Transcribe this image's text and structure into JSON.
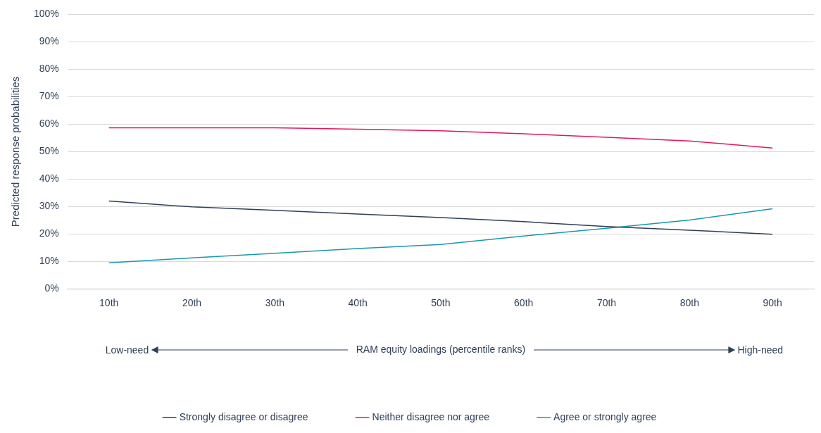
{
  "chart_data": {
    "type": "line",
    "xlabel": "RAM equity loadings (percentile ranks)",
    "ylabel": "Predicted response probabilities",
    "categories": [
      "10th",
      "20th",
      "30th",
      "40th",
      "50th",
      "60th",
      "70th",
      "80th",
      "90th"
    ],
    "series": [
      {
        "name": "Strongly disagree or disagree",
        "color": "#2e3f57",
        "values": [
          32.0,
          29.9,
          28.6,
          27.3,
          26.0,
          24.5,
          22.7,
          21.4,
          19.9
        ]
      },
      {
        "name": "Neither disagree nor agree",
        "color": "#e0195a",
        "values": [
          58.7,
          58.7,
          58.7,
          58.2,
          57.6,
          56.5,
          55.2,
          53.9,
          51.3
        ]
      },
      {
        "name": "Agree or strongly agree",
        "color": "#1a97b0",
        "values": [
          9.5,
          11.3,
          13.0,
          14.7,
          16.2,
          19.3,
          22.1,
          25.1,
          29.2
        ]
      }
    ],
    "ylim": [
      0,
      100
    ],
    "yticks": [
      {
        "value": 0,
        "label": "0%"
      },
      {
        "value": 10,
        "label": "10%"
      },
      {
        "value": 20,
        "label": "20%"
      },
      {
        "value": 30,
        "label": "30%"
      },
      {
        "value": 40,
        "label": "40%"
      },
      {
        "value": 50,
        "label": "50%"
      },
      {
        "value": 60,
        "label": "60%"
      },
      {
        "value": 70,
        "label": "70%"
      },
      {
        "value": 80,
        "label": "80%"
      },
      {
        "value": 90,
        "label": "90%"
      },
      {
        "value": 100,
        "label": "100%"
      }
    ],
    "annotations": [
      "Low-need",
      "High-need"
    ],
    "grid": "y",
    "legend": "bottom",
    "marker": "none",
    "line_style": "solid"
  }
}
